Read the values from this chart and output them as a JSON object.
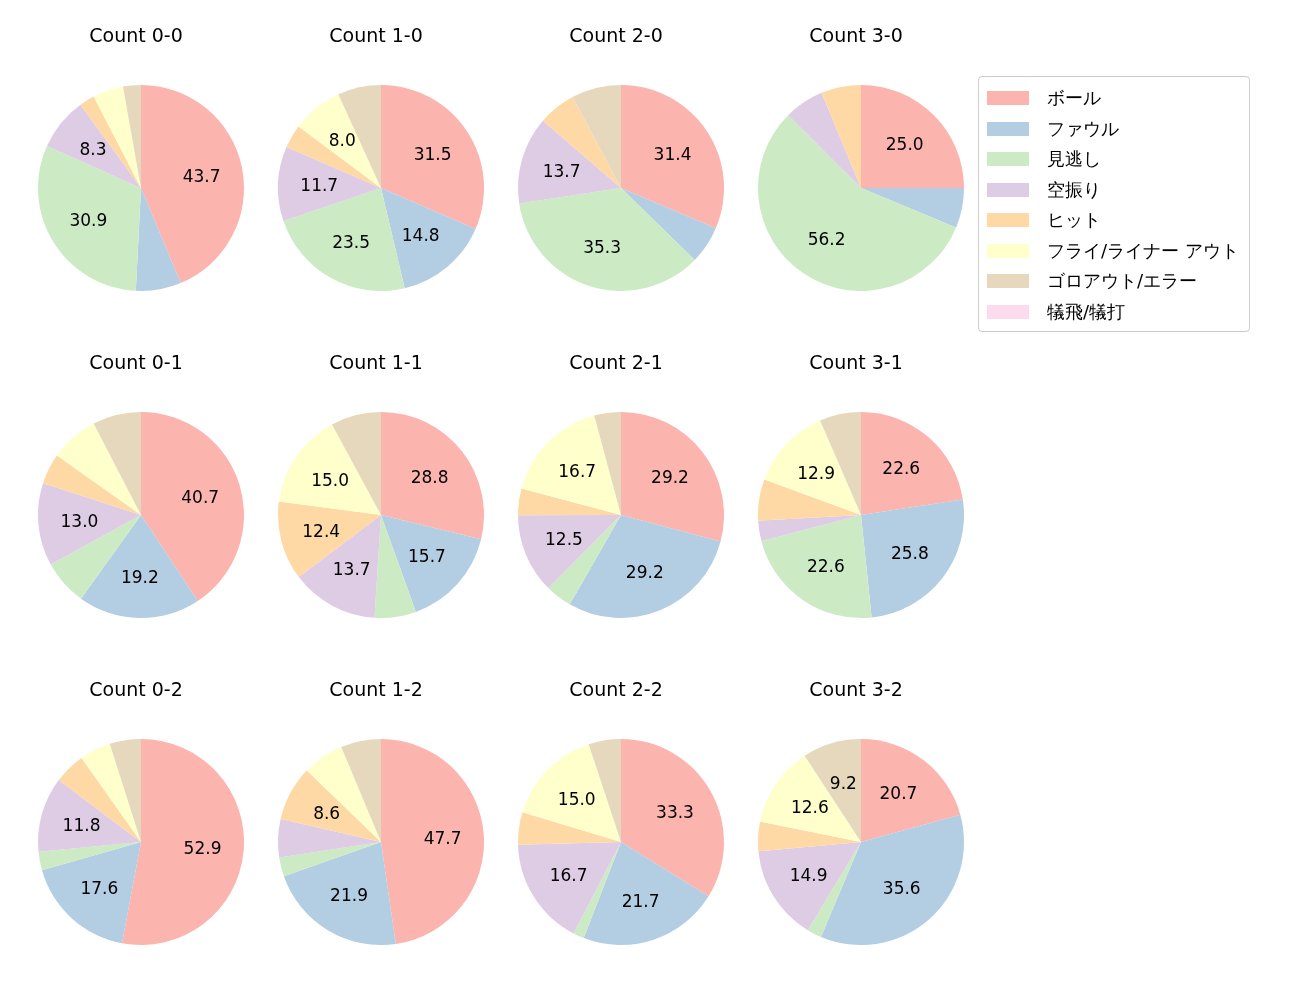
{
  "chart_data": [
    {
      "type": "pie",
      "title": "Count 0-0",
      "categories": [
        null,
        null,
        null,
        null,
        null,
        null,
        null,
        null
      ],
      "values": [
        43.7,
        7.1,
        30.9,
        8.3,
        2.4,
        4.8,
        2.8,
        0
      ],
      "value_labels": [
        "43.7",
        null,
        "30.9",
        "8.3",
        null,
        null,
        null,
        null
      ],
      "colors": [
        "#fbb4ae",
        "#b3cde3",
        "#ccebc5",
        "#decbe4",
        "#fed9a6",
        "#ffffcc",
        "#e5d8bd",
        "#fddaec"
      ]
    },
    {
      "type": "pie",
      "title": "Count 1-0",
      "categories": [
        null,
        null,
        null,
        null,
        null,
        null,
        null,
        null
      ],
      "values": [
        31.5,
        14.8,
        23.5,
        11.7,
        3.7,
        8.0,
        6.8,
        0
      ],
      "value_labels": [
        "31.5",
        "14.8",
        "23.5",
        "11.7",
        null,
        "8.0",
        null,
        null
      ],
      "colors": [
        "#fbb4ae",
        "#b3cde3",
        "#ccebc5",
        "#decbe4",
        "#fed9a6",
        "#ffffcc",
        "#e5d8bd",
        "#fddaec"
      ]
    },
    {
      "type": "pie",
      "title": "Count 2-0",
      "categories": [
        null,
        null,
        null,
        null,
        null,
        null,
        null,
        null
      ],
      "values": [
        31.4,
        5.9,
        35.3,
        13.7,
        5.9,
        0,
        7.8,
        0
      ],
      "value_labels": [
        "31.4",
        null,
        "35.3",
        "13.7",
        null,
        null,
        null,
        null
      ],
      "colors": [
        "#fbb4ae",
        "#b3cde3",
        "#ccebc5",
        "#decbe4",
        "#fed9a6",
        "#ffffcc",
        "#e5d8bd",
        "#fddaec"
      ]
    },
    {
      "type": "pie",
      "title": "Count 3-0",
      "categories": [
        "ボール",
        "ファウル",
        "見逃し",
        "空振り",
        "ヒット",
        "フライ/ライナー アウト",
        "ゴロアウト/エラー",
        "犠飛/犠打"
      ],
      "values": [
        25.0,
        6.25,
        56.2,
        6.25,
        6.25,
        0,
        0,
        0
      ],
      "value_labels": [
        "25.0",
        null,
        "56.2",
        null,
        null,
        null,
        null,
        null
      ],
      "colors": [
        "#fbb4ae",
        "#b3cde3",
        "#ccebc5",
        "#decbe4",
        "#fed9a6",
        "#ffffcc",
        "#e5d8bd",
        "#fddaec"
      ],
      "legend": "right"
    },
    {
      "type": "pie",
      "title": "Count 0-1",
      "categories": [
        null,
        null,
        null,
        null,
        null,
        null,
        null,
        null
      ],
      "values": [
        40.7,
        19.2,
        7.1,
        13.0,
        4.8,
        7.6,
        7.6,
        0
      ],
      "value_labels": [
        "40.7",
        "19.2",
        null,
        "13.0",
        null,
        null,
        null,
        null
      ],
      "colors": [
        "#fbb4ae",
        "#b3cde3",
        "#ccebc5",
        "#decbe4",
        "#fed9a6",
        "#ffffcc",
        "#e5d8bd",
        "#fddaec"
      ]
    },
    {
      "type": "pie",
      "title": "Count 1-1",
      "categories": [
        null,
        null,
        null,
        null,
        null,
        null,
        null,
        null
      ],
      "values": [
        28.8,
        15.7,
        6.5,
        13.7,
        12.4,
        15.0,
        7.9,
        0
      ],
      "value_labels": [
        "28.8",
        "15.7",
        null,
        "13.7",
        "12.4",
        "15.0",
        null,
        null
      ],
      "colors": [
        "#fbb4ae",
        "#b3cde3",
        "#ccebc5",
        "#decbe4",
        "#fed9a6",
        "#ffffcc",
        "#e5d8bd",
        "#fddaec"
      ]
    },
    {
      "type": "pie",
      "title": "Count 2-1",
      "categories": [
        null,
        null,
        null,
        null,
        null,
        null,
        null,
        null
      ],
      "values": [
        29.2,
        29.2,
        4.2,
        12.5,
        4.2,
        16.7,
        4.2,
        0
      ],
      "value_labels": [
        "29.2",
        "29.2",
        null,
        "12.5",
        null,
        "16.7",
        null,
        null
      ],
      "colors": [
        "#fbb4ae",
        "#b3cde3",
        "#ccebc5",
        "#decbe4",
        "#fed9a6",
        "#ffffcc",
        "#e5d8bd",
        "#fddaec"
      ]
    },
    {
      "type": "pie",
      "title": "Count 3-1",
      "categories": [
        null,
        null,
        null,
        null,
        null,
        null,
        null,
        null
      ],
      "values": [
        22.6,
        25.8,
        22.6,
        3.2,
        6.5,
        12.9,
        6.5,
        0
      ],
      "value_labels": [
        "22.6",
        "25.8",
        "22.6",
        null,
        null,
        "12.9",
        null,
        null
      ],
      "colors": [
        "#fbb4ae",
        "#b3cde3",
        "#ccebc5",
        "#decbe4",
        "#fed9a6",
        "#ffffcc",
        "#e5d8bd",
        "#fddaec"
      ]
    },
    {
      "type": "pie",
      "title": "Count 0-2",
      "categories": [
        null,
        null,
        null,
        null,
        null,
        null,
        null,
        null
      ],
      "values": [
        52.9,
        17.6,
        2.9,
        11.8,
        4.9,
        4.9,
        4.9,
        0
      ],
      "value_labels": [
        "52.9",
        "17.6",
        null,
        "11.8",
        null,
        null,
        null,
        null
      ],
      "colors": [
        "#fbb4ae",
        "#b3cde3",
        "#ccebc5",
        "#decbe4",
        "#fed9a6",
        "#ffffcc",
        "#e5d8bd",
        "#fddaec"
      ]
    },
    {
      "type": "pie",
      "title": "Count 1-2",
      "categories": [
        null,
        null,
        null,
        null,
        null,
        null,
        null,
        null
      ],
      "values": [
        47.7,
        21.9,
        3.0,
        6.0,
        8.6,
        6.5,
        6.3,
        0
      ],
      "value_labels": [
        "47.7",
        "21.9",
        null,
        null,
        "8.6",
        null,
        null,
        null
      ],
      "colors": [
        "#fbb4ae",
        "#b3cde3",
        "#ccebc5",
        "#decbe4",
        "#fed9a6",
        "#ffffcc",
        "#e5d8bd",
        "#fddaec"
      ]
    },
    {
      "type": "pie",
      "title": "Count 2-2",
      "categories": [
        null,
        null,
        null,
        null,
        null,
        null,
        null,
        null
      ],
      "values": [
        33.3,
        21.7,
        1.7,
        16.7,
        5.0,
        15.0,
        5.0,
        0
      ],
      "value_labels": [
        "33.3",
        "21.7",
        null,
        "16.7",
        null,
        "15.0",
        null,
        null
      ],
      "colors": [
        "#fbb4ae",
        "#b3cde3",
        "#ccebc5",
        "#decbe4",
        "#fed9a6",
        "#ffffcc",
        "#e5d8bd",
        "#fddaec"
      ]
    },
    {
      "type": "pie",
      "title": "Count 3-2",
      "categories": [
        null,
        null,
        null,
        null,
        null,
        null,
        null,
        null
      ],
      "values": [
        20.7,
        35.6,
        2.3,
        14.9,
        4.6,
        12.6,
        9.2,
        0
      ],
      "value_labels": [
        "20.7",
        "35.6",
        null,
        "14.9",
        null,
        "12.6",
        "9.2",
        null
      ],
      "colors": [
        "#fbb4ae",
        "#b3cde3",
        "#ccebc5",
        "#decbe4",
        "#fed9a6",
        "#ffffcc",
        "#e5d8bd",
        "#fddaec"
      ]
    }
  ]
}
